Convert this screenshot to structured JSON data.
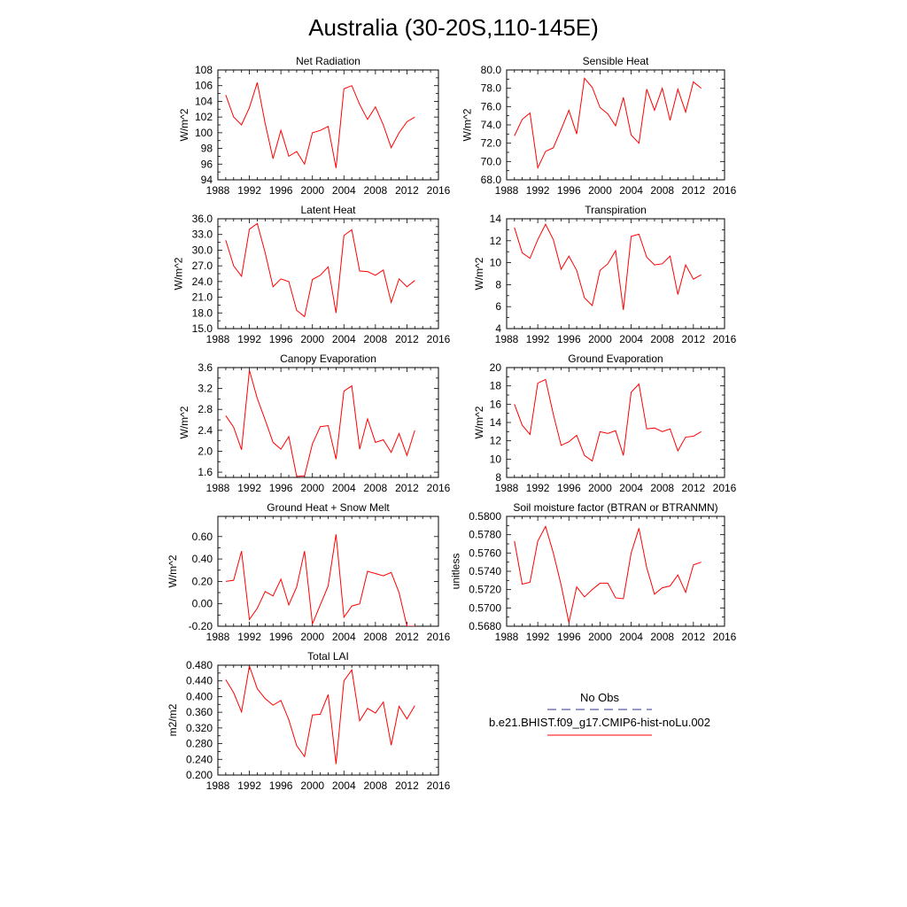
{
  "title": "Australia (30-20S,110-145E)",
  "legend": {
    "obs_label": "No Obs",
    "model_label": "b.e21.BHIST.f09_g17.CMIP6-hist-noLu.002",
    "obs_color": "#5a5aa0",
    "model_color": "#ff0000"
  },
  "chart_data": [
    {
      "type": "line",
      "title": "Net Radiation",
      "ylabel": "W/m^2",
      "xlim": [
        1988,
        2016
      ],
      "ylim": [
        94,
        108
      ],
      "xticks": [
        "1988",
        "1992",
        "1996",
        "2000",
        "2004",
        "2008",
        "2012",
        "2016"
      ],
      "yticks": [
        "94",
        "96",
        "98",
        "100",
        "102",
        "104",
        "106",
        "108"
      ],
      "x": [
        1989,
        1990,
        1991,
        1992,
        1993,
        1994,
        1995,
        1996,
        1997,
        1998,
        1999,
        2000,
        2001,
        2002,
        2003,
        2004,
        2005,
        2006,
        2007,
        2008,
        2009,
        2010,
        2011,
        2012,
        2013
      ],
      "series": [
        {
          "name": "b.e21.BHIST.f09_g17.CMIP6-hist-noLu.002",
          "color": "#ff0000",
          "values": [
            104.8,
            102.0,
            101.0,
            103.2,
            106.4,
            101.2,
            96.7,
            100.3,
            97.0,
            97.6,
            96.0,
            100.0,
            100.3,
            100.8,
            95.5,
            105.6,
            106.0,
            103.6,
            101.7,
            103.3,
            101.0,
            98.1,
            100.0,
            101.4,
            102.0
          ]
        }
      ]
    },
    {
      "type": "line",
      "title": "Sensible Heat",
      "ylabel": "W/m^2",
      "xlim": [
        1988,
        2016
      ],
      "ylim": [
        68.0,
        80.0
      ],
      "xticks": [
        "1988",
        "1992",
        "1996",
        "2000",
        "2004",
        "2008",
        "2012",
        "2016"
      ],
      "yticks": [
        "68.0",
        "70.0",
        "72.0",
        "74.0",
        "76.0",
        "78.0",
        "80.0"
      ],
      "x": [
        1989,
        1990,
        1991,
        1992,
        1993,
        1994,
        1995,
        1996,
        1997,
        1998,
        1999,
        2000,
        2001,
        2002,
        2003,
        2004,
        2005,
        2006,
        2007,
        2008,
        2009,
        2010,
        2011,
        2012,
        2013
      ],
      "series": [
        {
          "name": "b.e21.BHIST.f09_g17.CMIP6-hist-noLu.002",
          "color": "#ff0000",
          "values": [
            72.8,
            74.6,
            75.3,
            69.3,
            71.1,
            71.5,
            73.5,
            75.6,
            73.0,
            79.1,
            78.1,
            75.9,
            75.2,
            73.9,
            77.0,
            72.9,
            72.0,
            77.9,
            75.6,
            78.0,
            74.5,
            77.9,
            75.4,
            78.7,
            78.0
          ]
        }
      ]
    },
    {
      "type": "line",
      "title": "Latent Heat",
      "ylabel": "W/m^2",
      "xlim": [
        1988,
        2016
      ],
      "ylim": [
        15.0,
        36.0
      ],
      "xticks": [
        "1988",
        "1992",
        "1996",
        "2000",
        "2004",
        "2008",
        "2012",
        "2016"
      ],
      "yticks": [
        "15.0",
        "18.0",
        "21.0",
        "24.0",
        "27.0",
        "30.0",
        "33.0",
        "36.0"
      ],
      "x": [
        1989,
        1990,
        1991,
        1992,
        1993,
        1994,
        1995,
        1996,
        1997,
        1998,
        1999,
        2000,
        2001,
        2002,
        2003,
        2004,
        2005,
        2006,
        2007,
        2008,
        2009,
        2010,
        2011,
        2012,
        2013
      ],
      "series": [
        {
          "name": "b.e21.BHIST.f09_g17.CMIP6-hist-noLu.002",
          "color": "#ff0000",
          "values": [
            31.9,
            27.0,
            25.0,
            34.0,
            35.1,
            29.5,
            23.0,
            24.5,
            24.0,
            18.5,
            17.3,
            24.4,
            25.2,
            26.8,
            18.0,
            32.8,
            33.9,
            26.0,
            25.9,
            25.2,
            26.2,
            20.0,
            24.5,
            23.0,
            24.2
          ]
        }
      ]
    },
    {
      "type": "line",
      "title": "Transpiration",
      "ylabel": "W/m^2",
      "xlim": [
        1988,
        2016
      ],
      "ylim": [
        4,
        14
      ],
      "xticks": [
        "1988",
        "1992",
        "1996",
        "2000",
        "2004",
        "2008",
        "2012",
        "2016"
      ],
      "yticks": [
        "4",
        "6",
        "8",
        "10",
        "12",
        "14"
      ],
      "x": [
        1989,
        1990,
        1991,
        1992,
        1993,
        1994,
        1995,
        1996,
        1997,
        1998,
        1999,
        2000,
        2001,
        2002,
        2003,
        2004,
        2005,
        2006,
        2007,
        2008,
        2009,
        2010,
        2011,
        2012,
        2013
      ],
      "series": [
        {
          "name": "b.e21.BHIST.f09_g17.CMIP6-hist-noLu.002",
          "color": "#ff0000",
          "values": [
            13.2,
            10.9,
            10.4,
            12.1,
            13.5,
            12.1,
            9.4,
            10.6,
            9.3,
            6.8,
            6.1,
            9.3,
            9.9,
            11.1,
            5.7,
            12.4,
            12.6,
            10.5,
            9.8,
            9.9,
            10.6,
            7.1,
            9.8,
            8.5,
            8.9
          ]
        }
      ]
    },
    {
      "type": "line",
      "title": "Canopy Evaporation",
      "ylabel": "W/m^2",
      "xlim": [
        1988,
        2016
      ],
      "ylim": [
        1.5,
        3.6
      ],
      "xticks": [
        "1988",
        "1992",
        "1996",
        "2000",
        "2004",
        "2008",
        "2012",
        "2016"
      ],
      "yticks": [
        "1.6",
        "2.0",
        "2.4",
        "2.8",
        "3.2",
        "3.6"
      ],
      "x": [
        1989,
        1990,
        1991,
        1992,
        1993,
        1994,
        1995,
        1996,
        1997,
        1998,
        1999,
        2000,
        2001,
        2002,
        2003,
        2004,
        2005,
        2006,
        2007,
        2008,
        2009,
        2010,
        2011,
        2012,
        2013
      ],
      "series": [
        {
          "name": "b.e21.BHIST.f09_g17.CMIP6-hist-noLu.002",
          "color": "#ff0000",
          "values": [
            2.68,
            2.46,
            2.03,
            3.55,
            3.01,
            2.6,
            2.17,
            2.04,
            2.28,
            1.52,
            1.53,
            2.14,
            2.47,
            2.49,
            1.85,
            3.15,
            3.25,
            2.04,
            2.62,
            2.17,
            2.22,
            1.98,
            2.34,
            1.92,
            2.4
          ]
        }
      ]
    },
    {
      "type": "line",
      "title": "Ground Evaporation",
      "ylabel": "W/m^2",
      "xlim": [
        1988,
        2016
      ],
      "ylim": [
        8,
        20
      ],
      "xticks": [
        "1988",
        "1992",
        "1996",
        "2000",
        "2004",
        "2008",
        "2012",
        "2016"
      ],
      "yticks": [
        "8",
        "10",
        "12",
        "14",
        "16",
        "18",
        "20"
      ],
      "x": [
        1989,
        1990,
        1991,
        1992,
        1993,
        1994,
        1995,
        1996,
        1997,
        1998,
        1999,
        2000,
        2001,
        2002,
        2003,
        2004,
        2005,
        2006,
        2007,
        2008,
        2009,
        2010,
        2011,
        2012,
        2013
      ],
      "series": [
        {
          "name": "b.e21.BHIST.f09_g17.CMIP6-hist-noLu.002",
          "color": "#ff0000",
          "values": [
            16.0,
            13.7,
            12.7,
            18.3,
            18.7,
            14.9,
            11.5,
            11.9,
            12.6,
            10.4,
            9.8,
            13.0,
            12.8,
            13.1,
            10.4,
            17.3,
            18.2,
            13.3,
            13.4,
            13.0,
            13.3,
            10.9,
            12.4,
            12.5,
            13.0
          ]
        }
      ]
    },
    {
      "type": "line",
      "title": "Ground Heat + Snow Melt",
      "ylabel": "W/m^2",
      "xlim": [
        1988,
        2016
      ],
      "ylim": [
        -0.2,
        0.78
      ],
      "xticks": [
        "1988",
        "1992",
        "1996",
        "2000",
        "2004",
        "2008",
        "2012",
        "2016"
      ],
      "yticks": [
        "-0.20",
        "0.00",
        "0.20",
        "0.40",
        "0.60"
      ],
      "x": [
        1989,
        1990,
        1991,
        1992,
        1993,
        1994,
        1995,
        1996,
        1997,
        1998,
        1999,
        2000,
        2001,
        2002,
        2003,
        2004,
        2005,
        2006,
        2007,
        2008,
        2009,
        2010,
        2011,
        2012,
        2013
      ],
      "series": [
        {
          "name": "b.e21.BHIST.f09_g17.CMIP6-hist-noLu.002",
          "color": "#ff0000",
          "values": [
            0.2,
            0.21,
            0.47,
            -0.14,
            -0.04,
            0.11,
            0.07,
            0.22,
            -0.01,
            0.15,
            0.47,
            -0.18,
            -0.01,
            0.16,
            0.62,
            -0.12,
            -0.02,
            0.0,
            0.29,
            0.27,
            0.25,
            0.28,
            0.1,
            -0.2,
            -0.2
          ]
        }
      ]
    },
    {
      "type": "line",
      "title": "Soil moisture factor (BTRAN or BTRANMN)",
      "ylabel": "unitless",
      "xlim": [
        1988,
        2016
      ],
      "ylim": [
        0.568,
        0.58
      ],
      "xticks": [
        "1988",
        "1992",
        "1996",
        "2000",
        "2004",
        "2008",
        "2012",
        "2016"
      ],
      "yticks": [
        "0.5680",
        "0.5700",
        "0.5720",
        "0.5740",
        "0.5760",
        "0.5780",
        "0.5800"
      ],
      "x": [
        1989,
        1990,
        1991,
        1992,
        1993,
        1994,
        1995,
        1996,
        1997,
        1998,
        1999,
        2000,
        2001,
        2002,
        2003,
        2004,
        2005,
        2006,
        2007,
        2008,
        2009,
        2010,
        2011,
        2012,
        2013
      ],
      "series": [
        {
          "name": "b.e21.BHIST.f09_g17.CMIP6-hist-noLu.002",
          "color": "#ff0000",
          "values": [
            0.5773,
            0.5726,
            0.5728,
            0.5773,
            0.5789,
            0.576,
            0.5725,
            0.5684,
            0.5723,
            0.5712,
            0.572,
            0.5727,
            0.5727,
            0.5711,
            0.571,
            0.576,
            0.5787,
            0.5744,
            0.5715,
            0.5722,
            0.5724,
            0.5736,
            0.5717,
            0.5747,
            0.575
          ]
        }
      ]
    },
    {
      "type": "line",
      "title": "Total LAI",
      "ylabel": "m2/m2",
      "xlim": [
        1988,
        2016
      ],
      "ylim": [
        0.2,
        0.48
      ],
      "xticks": [
        "1988",
        "1992",
        "1996",
        "2000",
        "2004",
        "2008",
        "2012",
        "2016"
      ],
      "yticks": [
        "0.200",
        "0.240",
        "0.280",
        "0.320",
        "0.360",
        "0.400",
        "0.440",
        "0.480"
      ],
      "x": [
        1989,
        1990,
        1991,
        1992,
        1993,
        1994,
        1995,
        1996,
        1997,
        1998,
        1999,
        2000,
        2001,
        2002,
        2003,
        2004,
        2005,
        2006,
        2007,
        2008,
        2009,
        2010,
        2011,
        2012,
        2013
      ],
      "series": [
        {
          "name": "b.e21.BHIST.f09_g17.CMIP6-hist-noLu.002",
          "color": "#ff0000",
          "values": [
            0.443,
            0.41,
            0.361,
            0.478,
            0.42,
            0.395,
            0.378,
            0.39,
            0.341,
            0.275,
            0.247,
            0.353,
            0.355,
            0.405,
            0.228,
            0.44,
            0.468,
            0.338,
            0.37,
            0.358,
            0.386,
            0.276,
            0.375,
            0.343,
            0.377
          ]
        }
      ]
    }
  ]
}
